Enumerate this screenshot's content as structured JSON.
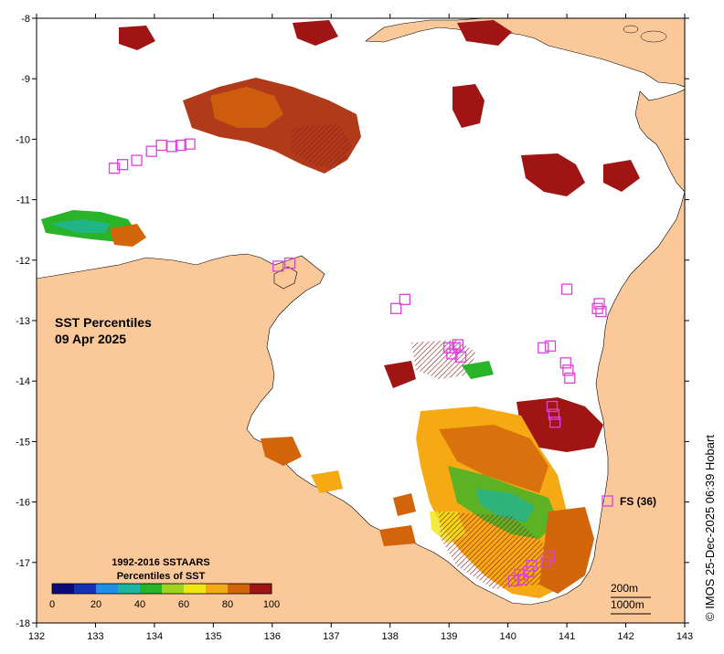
{
  "title": {
    "line1": "SST Percentiles",
    "line2": "09 Apr 2025"
  },
  "credit": "© IMOS 25-Dec-2025 06:39 Hobart",
  "legend": {
    "title1": "1992-2016 SSTAARS",
    "title2": "Percentiles of SST",
    "ticks": [
      "0",
      "20",
      "40",
      "60",
      "80",
      "100"
    ],
    "colors": [
      "#0a0a78",
      "#1432b4",
      "#1e90e6",
      "#1eb4a0",
      "#28b428",
      "#a0d21e",
      "#f0e614",
      "#f5aa14",
      "#d2640a",
      "#a01414"
    ]
  },
  "float_legend": {
    "label": "FS (36)",
    "color": "#e040e0"
  },
  "scale_bar": {
    "label1": "200m",
    "label2": "1000m"
  },
  "axes": {
    "x_ticks": [
      "132",
      "133",
      "134",
      "135",
      "136",
      "137",
      "138",
      "139",
      "140",
      "141",
      "142",
      "143"
    ],
    "y_ticks": [
      "-8",
      "-9",
      "-10",
      "-11",
      "-12",
      "-13",
      "-14",
      "-15",
      "-16",
      "-17",
      "-18"
    ],
    "lon_range": [
      132,
      143
    ],
    "lat_range": [
      -18,
      -8
    ]
  },
  "colors": {
    "land": "#fbc999",
    "ocean": "#ffffff",
    "float": "#e040e0"
  },
  "floats": [
    [
      133.32,
      -10.48
    ],
    [
      133.46,
      -10.42
    ],
    [
      133.7,
      -10.35
    ],
    [
      133.95,
      -10.2
    ],
    [
      134.12,
      -10.1
    ],
    [
      134.3,
      -10.12
    ],
    [
      134.45,
      -10.1
    ],
    [
      134.6,
      -10.08
    ],
    [
      136.1,
      -12.1
    ],
    [
      136.3,
      -12.05
    ],
    [
      138.1,
      -12.8
    ],
    [
      138.25,
      -12.65
    ],
    [
      139.0,
      -13.45
    ],
    [
      139.1,
      -13.45
    ],
    [
      139.15,
      -13.4
    ],
    [
      139.05,
      -13.55
    ],
    [
      139.2,
      -13.6
    ],
    [
      140.6,
      -13.45
    ],
    [
      140.72,
      -13.42
    ],
    [
      140.98,
      -13.7
    ],
    [
      141.02,
      -13.82
    ],
    [
      141.05,
      -13.95
    ],
    [
      141.0,
      -12.48
    ],
    [
      141.52,
      -12.8
    ],
    [
      141.55,
      -12.72
    ],
    [
      141.58,
      -12.85
    ],
    [
      140.75,
      -14.42
    ],
    [
      140.78,
      -14.55
    ],
    [
      140.8,
      -14.68
    ],
    [
      140.7,
      -16.9
    ],
    [
      140.65,
      -17.0
    ],
    [
      140.4,
      -17.05
    ],
    [
      140.35,
      -17.15
    ],
    [
      140.2,
      -17.2
    ],
    [
      140.25,
      -17.28
    ],
    [
      140.1,
      -17.3
    ]
  ]
}
